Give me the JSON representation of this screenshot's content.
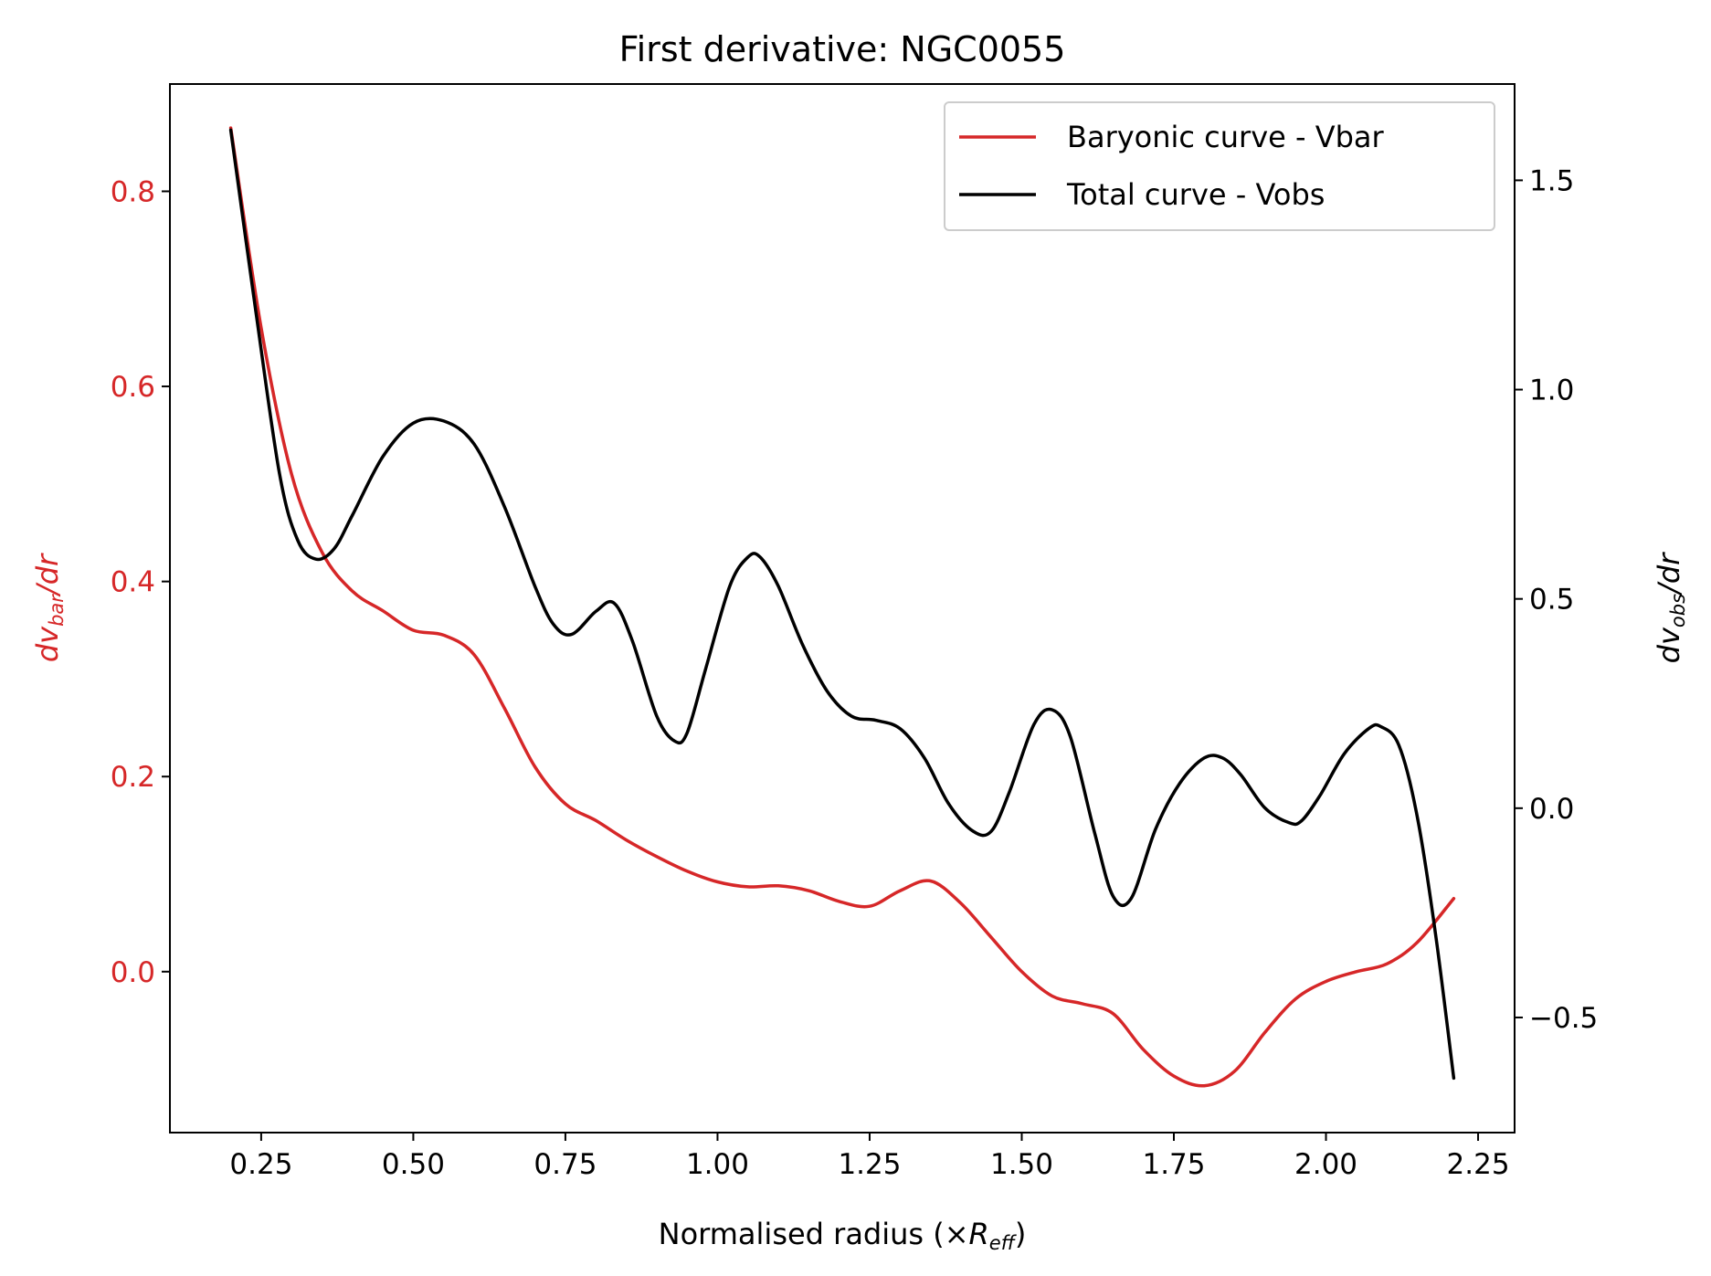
{
  "chart_data": {
    "type": "line",
    "title": "First derivative: NGC0055",
    "xlabel": {
      "main": "Normalised radius (×",
      "var": "R",
      "sub": "eff",
      "close": ")"
    },
    "ylabel_left": {
      "pre": "dv",
      "sub": "bar",
      "post": "/dr"
    },
    "ylabel_right": {
      "pre": "dv",
      "sub": "obs",
      "post": "/dr"
    },
    "xlim": [
      0.1,
      2.31
    ],
    "ylim_left": [
      -0.165,
      0.91
    ],
    "ylim_right": [
      -0.775,
      1.73
    ],
    "xticks": [
      0.25,
      0.5,
      0.75,
      1.0,
      1.25,
      1.5,
      1.75,
      2.0,
      2.25
    ],
    "xtick_labels": [
      "0.25",
      "0.50",
      "0.75",
      "1.00",
      "1.25",
      "1.50",
      "1.75",
      "2.00",
      "2.25"
    ],
    "yticks_left": [
      0.0,
      0.2,
      0.4,
      0.6,
      0.8
    ],
    "ytick_labels_left": [
      "0.0",
      "0.2",
      "0.4",
      "0.6",
      "0.8"
    ],
    "yticks_right": [
      -0.5,
      0.0,
      0.5,
      1.0,
      1.5
    ],
    "ytick_labels_right": [
      "−0.5",
      "0.0",
      "0.5",
      "1.0",
      "1.5"
    ],
    "legend_position": "top-right",
    "grid": false,
    "colors": {
      "bar": "#d62728",
      "obs": "#000000",
      "left_axis_text": "#d62728"
    },
    "series": [
      {
        "name": "Baryonic curve - Vbar",
        "axis": "left",
        "color": "#d62728",
        "x": [
          0.2,
          0.25,
          0.3,
          0.35,
          0.4,
          0.45,
          0.5,
          0.55,
          0.6,
          0.65,
          0.7,
          0.75,
          0.8,
          0.85,
          0.9,
          0.95,
          1.0,
          1.05,
          1.1,
          1.15,
          1.2,
          1.25,
          1.3,
          1.35,
          1.4,
          1.45,
          1.5,
          1.55,
          1.6,
          1.65,
          1.7,
          1.75,
          1.8,
          1.85,
          1.9,
          1.95,
          2.0,
          2.05,
          2.1,
          2.15,
          2.21
        ],
        "y": [
          0.865,
          0.66,
          0.51,
          0.43,
          0.39,
          0.37,
          0.35,
          0.345,
          0.325,
          0.27,
          0.21,
          0.172,
          0.155,
          0.135,
          0.118,
          0.103,
          0.092,
          0.087,
          0.088,
          0.083,
          0.072,
          0.067,
          0.083,
          0.093,
          0.07,
          0.035,
          0.0,
          -0.025,
          -0.033,
          -0.043,
          -0.08,
          -0.107,
          -0.117,
          -0.102,
          -0.062,
          -0.028,
          -0.01,
          0.0,
          0.008,
          0.03,
          0.075
        ]
      },
      {
        "name": "Total curve - Vobs",
        "axis": "right",
        "color": "#000000",
        "x": [
          0.2,
          0.24,
          0.28,
          0.31,
          0.34,
          0.37,
          0.4,
          0.45,
          0.5,
          0.55,
          0.6,
          0.65,
          0.7,
          0.73,
          0.76,
          0.8,
          0.83,
          0.86,
          0.9,
          0.93,
          0.95,
          0.98,
          1.02,
          1.05,
          1.07,
          1.1,
          1.14,
          1.18,
          1.22,
          1.26,
          1.3,
          1.34,
          1.38,
          1.42,
          1.45,
          1.48,
          1.52,
          1.55,
          1.58,
          1.62,
          1.65,
          1.68,
          1.72,
          1.76,
          1.8,
          1.83,
          1.86,
          1.9,
          1.94,
          1.96,
          1.99,
          2.03,
          2.07,
          2.09,
          2.12,
          2.15,
          2.18,
          2.21
        ],
        "y": [
          1.62,
          1.2,
          0.8,
          0.64,
          0.595,
          0.62,
          0.7,
          0.84,
          0.92,
          0.925,
          0.87,
          0.72,
          0.53,
          0.44,
          0.415,
          0.47,
          0.49,
          0.4,
          0.22,
          0.16,
          0.18,
          0.33,
          0.53,
          0.6,
          0.6,
          0.53,
          0.39,
          0.28,
          0.22,
          0.21,
          0.19,
          0.12,
          0.01,
          -0.055,
          -0.055,
          0.04,
          0.2,
          0.235,
          0.17,
          -0.06,
          -0.21,
          -0.215,
          -0.05,
          0.06,
          0.12,
          0.12,
          0.08,
          0.0,
          -0.035,
          -0.03,
          0.03,
          0.13,
          0.19,
          0.195,
          0.15,
          -0.02,
          -0.3,
          -0.645
        ]
      }
    ]
  }
}
